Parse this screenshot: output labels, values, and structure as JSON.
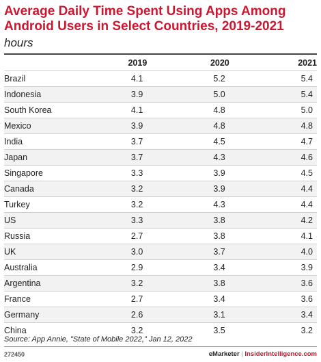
{
  "chart_data": {
    "type": "table",
    "title": "Average Daily Time Spent Using Apps Among Android Users in Select Countries, 2019-2021",
    "subtitle": "hours",
    "columns": [
      "2019",
      "2020",
      "2021"
    ],
    "rows": [
      {
        "country": "Brazil",
        "values": [
          "4.1",
          "5.2",
          "5.4"
        ]
      },
      {
        "country": "Indonesia",
        "values": [
          "3.9",
          "5.0",
          "5.4"
        ]
      },
      {
        "country": "South Korea",
        "values": [
          "4.1",
          "4.8",
          "5.0"
        ]
      },
      {
        "country": "Mexico",
        "values": [
          "3.9",
          "4.8",
          "4.8"
        ]
      },
      {
        "country": "India",
        "values": [
          "3.7",
          "4.5",
          "4.7"
        ]
      },
      {
        "country": "Japan",
        "values": [
          "3.7",
          "4.3",
          "4.6"
        ]
      },
      {
        "country": "Singapore",
        "values": [
          "3.3",
          "3.9",
          "4.5"
        ]
      },
      {
        "country": "Canada",
        "values": [
          "3.2",
          "3.9",
          "4.4"
        ]
      },
      {
        "country": "Turkey",
        "values": [
          "3.2",
          "4.3",
          "4.4"
        ]
      },
      {
        "country": "US",
        "values": [
          "3.3",
          "3.8",
          "4.2"
        ]
      },
      {
        "country": "Russia",
        "values": [
          "2.7",
          "3.8",
          "4.1"
        ]
      },
      {
        "country": "UK",
        "values": [
          "3.0",
          "3.7",
          "4.0"
        ]
      },
      {
        "country": "Australia",
        "values": [
          "2.9",
          "3.4",
          "3.9"
        ]
      },
      {
        "country": "Argentina",
        "values": [
          "3.2",
          "3.8",
          "3.6"
        ]
      },
      {
        "country": "France",
        "values": [
          "2.7",
          "3.4",
          "3.6"
        ]
      },
      {
        "country": "Germany",
        "values": [
          "2.6",
          "3.1",
          "3.4"
        ]
      },
      {
        "country": "China",
        "values": [
          "3.2",
          "3.5",
          "3.2"
        ]
      }
    ]
  },
  "footer": {
    "source": "Source: App Annie, \"State of Mobile 2022,\" Jan 12, 2022",
    "chart_id": "272450",
    "brand_left": "eMarketer",
    "brand_sep": "|",
    "brand_right": "InsiderIntelligence.com"
  },
  "colors": {
    "title": "#cc1731",
    "row_stripe": "#f2f2f2"
  }
}
